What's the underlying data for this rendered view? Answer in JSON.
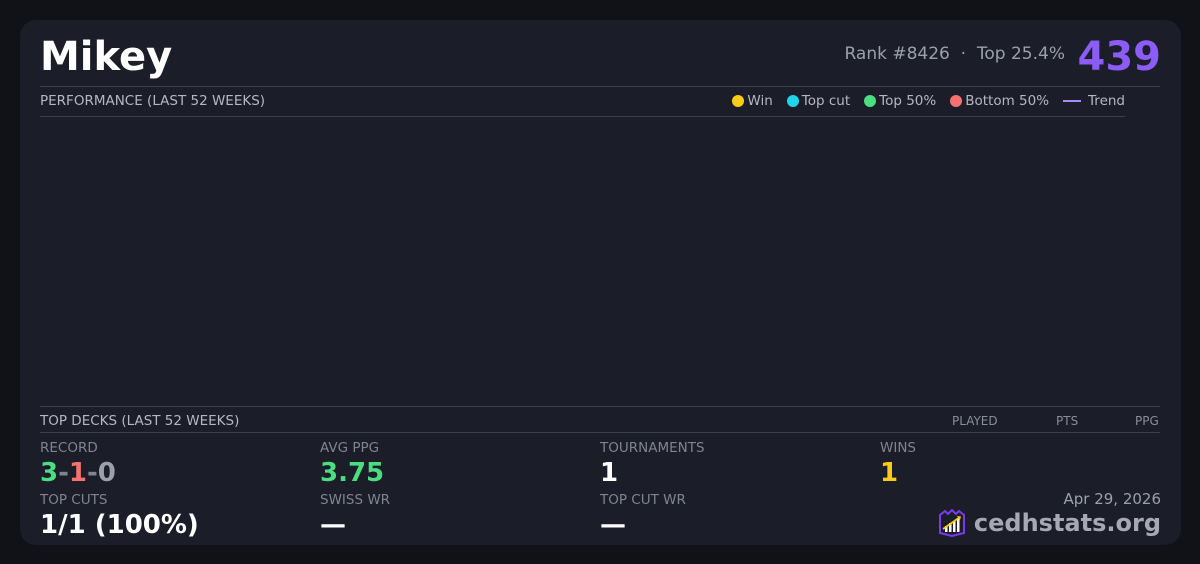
{
  "player": {
    "name": "Mikey",
    "rank": "Rank #8426",
    "sep": "·",
    "top_pct": "Top 25.4%",
    "score": "439"
  },
  "performance": {
    "title": "PERFORMANCE (LAST 52 WEEKS)",
    "legend": [
      {
        "label": "Win",
        "color": "#facc15"
      },
      {
        "label": "Top cut",
        "color": "#22d3ee"
      },
      {
        "label": "Top 50%",
        "color": "#4ade80"
      },
      {
        "label": "Bottom 50%",
        "color": "#f87171"
      },
      {
        "label": "Trend",
        "color": "#a78bfa"
      }
    ]
  },
  "top_decks": {
    "title": "TOP DECKS (LAST 52 WEEKS)",
    "columns": [
      "PLAYED",
      "PTS",
      "PPG"
    ]
  },
  "stats": {
    "record": {
      "label": "RECORD",
      "wins": "3",
      "losses": "1",
      "draws": "0",
      "dash": "-"
    },
    "avg_ppg": {
      "label": "AVG PPG",
      "value": "3.75"
    },
    "tournaments": {
      "label": "TOURNAMENTS",
      "value": "1"
    },
    "wins": {
      "label": "WINS",
      "value": "1"
    },
    "top_cuts": {
      "label": "TOP CUTS",
      "value": "1/1 (100%)"
    },
    "swiss_wr": {
      "label": "SWISS WR",
      "value": "—"
    },
    "top_cut_wr": {
      "label": "TOP CUT WR",
      "value": "—"
    }
  },
  "footer": {
    "date": "Apr 29, 2026",
    "brand": "cedhstats.org"
  }
}
